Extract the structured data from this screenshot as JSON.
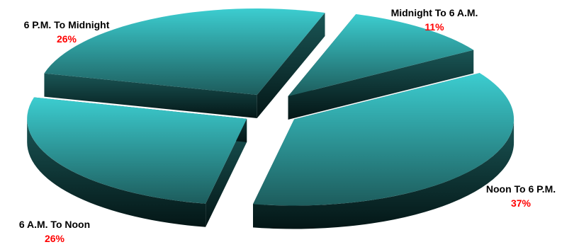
{
  "chart_data": {
    "type": "pie",
    "title": "",
    "categories": [
      "Midnight To 6 A.M.",
      "Noon To 6 P.M.",
      "6 A.M. To Noon",
      "6 P.M. To Midnight"
    ],
    "values": [
      11,
      37,
      26,
      26
    ],
    "value_labels": [
      "11%",
      "37%",
      "26%",
      "26%"
    ],
    "unit": "%",
    "style": "3d-exploded",
    "colors": {
      "top_light": "#3ccdd0",
      "top_dark": "#1d5c5c",
      "side_light": "#1a5656",
      "side_dark": "#041616"
    },
    "legend": "none"
  }
}
